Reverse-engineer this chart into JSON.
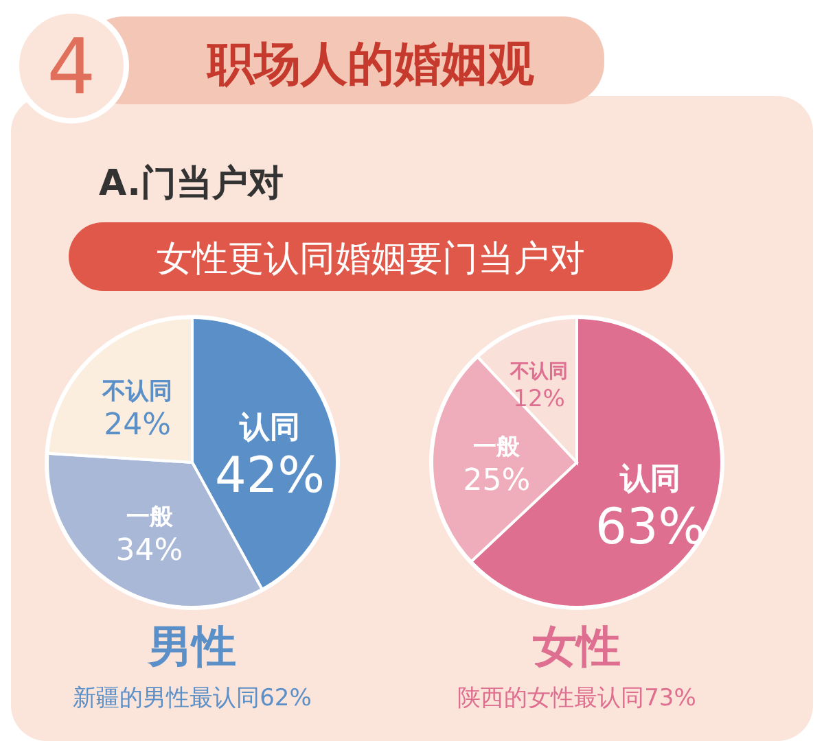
{
  "chart_data": [
    {
      "type": "other",
      "title": "职场人的婚姻观",
      "subtitle": "A.门当户对",
      "annotations": [
        "4",
        "女性更认同婚姻要门当户对"
      ]
    },
    {
      "type": "pie",
      "title": "男性",
      "categories": [
        "认同",
        "一般",
        "不认同"
      ],
      "values": [
        42,
        34,
        24
      ],
      "colors": [
        "#5a8fc8",
        "#a8b8d6",
        "#fbeede"
      ],
      "value_labels": [
        "42%",
        "34%",
        "24%"
      ],
      "annotations": [
        "新疆的男性最认同62%"
      ]
    },
    {
      "type": "pie",
      "title": "女性",
      "categories": [
        "认同",
        "一般",
        "不认同"
      ],
      "values": [
        63,
        25,
        12
      ],
      "colors": [
        "#df6f90",
        "#efadbb",
        "#f9e0d9"
      ],
      "value_labels": [
        "63%",
        "25%",
        "12%"
      ],
      "annotations": [
        "陕西的女性最认同73%"
      ]
    }
  ]
}
